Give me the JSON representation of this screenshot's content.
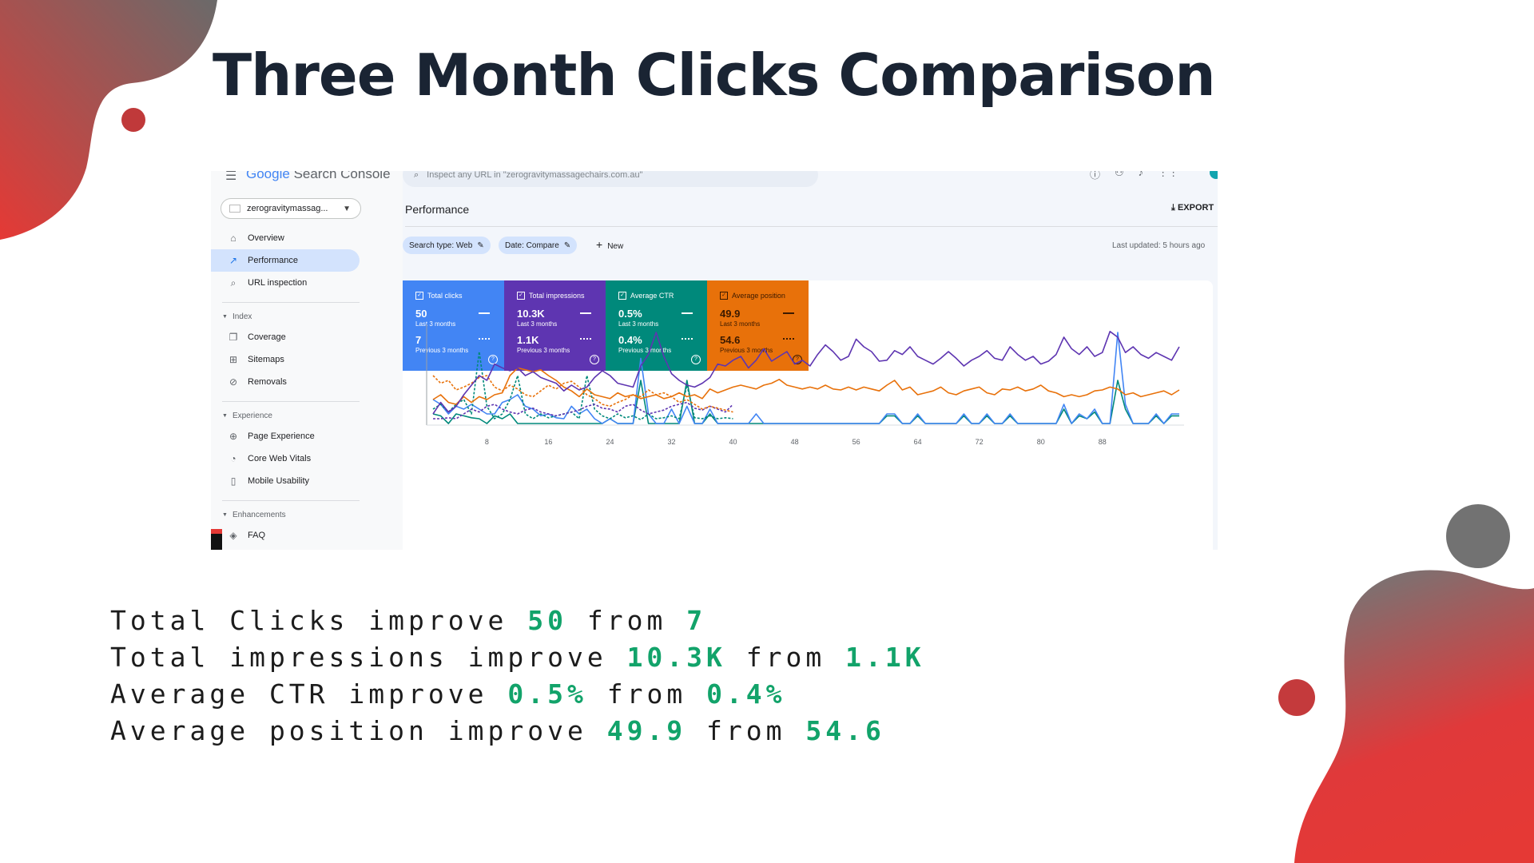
{
  "slide": {
    "title": "Three Month Clicks Comparison",
    "colors": {
      "accent_red": "#e53935",
      "accent_grey": "#6b6b6b",
      "highlight_green": "#12a36a"
    }
  },
  "gsc": {
    "brand": {
      "google": "Google",
      "product": "Search Console"
    },
    "property": "zerogravitymassag...",
    "search_placeholder": "Inspect any URL in \"zerogravitymassagechairs.com.au\"",
    "nav": [
      {
        "label": "Overview",
        "icon": "home-icon"
      },
      {
        "label": "Performance",
        "icon": "trending-icon",
        "active": true
      },
      {
        "label": "URL inspection",
        "icon": "search-icon"
      }
    ],
    "sections": {
      "index": {
        "label": "Index",
        "items": [
          {
            "label": "Coverage",
            "icon": "copy-icon"
          },
          {
            "label": "Sitemaps",
            "icon": "sitemap-icon"
          },
          {
            "label": "Removals",
            "icon": "eye-off-icon"
          }
        ]
      },
      "experience": {
        "label": "Experience",
        "items": [
          {
            "label": "Page Experience",
            "icon": "plus-circle-icon"
          },
          {
            "label": "Core Web Vitals",
            "icon": "gauge-icon"
          },
          {
            "label": "Mobile Usability",
            "icon": "phone-icon"
          }
        ]
      },
      "enhancements": {
        "label": "Enhancements",
        "items": [
          {
            "label": "FAQ",
            "icon": "layers-icon"
          }
        ]
      }
    },
    "page_title": "Performance",
    "export_label": "EXPORT",
    "filters": {
      "search_type": "Search type: Web",
      "date": "Date: Compare",
      "new_label": "New"
    },
    "last_updated": "Last updated: 5 hours ago",
    "metrics": [
      {
        "name": "Total clicks",
        "current": "50",
        "current_label": "Last 3 months",
        "previous": "7",
        "previous_label": "Previous 3 months",
        "color": "#4285f4"
      },
      {
        "name": "Total impressions",
        "current": "10.3K",
        "current_label": "Last 3 months",
        "previous": "1.1K",
        "previous_label": "Previous 3 months",
        "color": "#5e35b1"
      },
      {
        "name": "Average CTR",
        "current": "0.5%",
        "current_label": "Last 3 months",
        "previous": "0.4%",
        "previous_label": "Previous 3 months",
        "color": "#00897b"
      },
      {
        "name": "Average position",
        "current": "49.9",
        "current_label": "Last 3 months",
        "previous": "54.6",
        "previous_label": "Previous 3 months",
        "color": "#e8710a"
      }
    ]
  },
  "chart_data": {
    "type": "line",
    "x_ticks": [
      "8",
      "16",
      "24",
      "32",
      "40",
      "48",
      "56",
      "64",
      "72",
      "80",
      "88"
    ],
    "series": [
      {
        "color": "#5e35b1",
        "style": "solid",
        "values": [
          0.1,
          0.22,
          0.12,
          0.18,
          0.3,
          0.4,
          0.5,
          0.45,
          0.62,
          0.58,
          0.55,
          0.58,
          0.5,
          0.54,
          0.48,
          0.45,
          0.42,
          0.34,
          0.4,
          0.35,
          0.38,
          0.48,
          0.55,
          0.5,
          0.42,
          0.4,
          0.38,
          0.6,
          0.72,
          0.95,
          0.7,
          0.52,
          0.45,
          0.4,
          0.38,
          0.42,
          0.48,
          0.62,
          0.6,
          0.66,
          0.7,
          0.58,
          0.66,
          0.78,
          0.65,
          0.7,
          0.75,
          0.62,
          0.66,
          0.6,
          0.72,
          0.82,
          0.75,
          0.66,
          0.7,
          0.88,
          0.8,
          0.75,
          0.65,
          0.66,
          0.76,
          0.72,
          0.8,
          0.7,
          0.66,
          0.62,
          0.68,
          0.75,
          0.68,
          0.6,
          0.66,
          0.7,
          0.76,
          0.68,
          0.66,
          0.8,
          0.72,
          0.66,
          0.7,
          0.62,
          0.65,
          0.72,
          0.9,
          0.78,
          0.72,
          0.8,
          0.7,
          0.74,
          0.96,
          0.9,
          0.74,
          0.8,
          0.72,
          0.68,
          0.74,
          0.7,
          0.66,
          0.8
        ]
      },
      {
        "color": "#e8710a",
        "style": "solid",
        "values": [
          0.25,
          0.3,
          0.22,
          0.2,
          0.28,
          0.22,
          0.28,
          0.25,
          0.3,
          0.32,
          0.5,
          0.58,
          0.56,
          0.54,
          0.56,
          0.5,
          0.45,
          0.38,
          0.34,
          0.28,
          0.36,
          0.3,
          0.28,
          0.26,
          0.32,
          0.28,
          0.3,
          0.26,
          0.28,
          0.3,
          0.26,
          0.28,
          0.32,
          0.28,
          0.3,
          0.26,
          0.36,
          0.32,
          0.35,
          0.38,
          0.4,
          0.38,
          0.36,
          0.4,
          0.42,
          0.46,
          0.4,
          0.38,
          0.36,
          0.38,
          0.36,
          0.4,
          0.36,
          0.35,
          0.38,
          0.35,
          0.38,
          0.36,
          0.34,
          0.4,
          0.45,
          0.35,
          0.38,
          0.3,
          0.32,
          0.34,
          0.38,
          0.32,
          0.3,
          0.34,
          0.36,
          0.38,
          0.32,
          0.3,
          0.36,
          0.35,
          0.38,
          0.34,
          0.36,
          0.4,
          0.34,
          0.32,
          0.28,
          0.3,
          0.28,
          0.3,
          0.34,
          0.35,
          0.38,
          0.36,
          0.3,
          0.32,
          0.28,
          0.3,
          0.32,
          0.34,
          0.3,
          0.35
        ]
      },
      {
        "color": "#4285f4",
        "style": "solid",
        "values": [
          0.25,
          0.2,
          0.1,
          0.18,
          0.15,
          0.2,
          0.15,
          0.1,
          0.1,
          0.22,
          0.25,
          0.3,
          0.18,
          0.15,
          0.08,
          0.1,
          0.06,
          0.05,
          0.18,
          0.1,
          0.15,
          0.05,
          0.0,
          0.05,
          0.0,
          0.0,
          0.0,
          0.68,
          0.1,
          0.0,
          0.0,
          0.15,
          0.0,
          0.18,
          0.0,
          0.0,
          0.15,
          0.0,
          0.0,
          0.0,
          0.0,
          0.0,
          0.1,
          0.0,
          0.0,
          0.0,
          0.0,
          0.0,
          0.0,
          0.0,
          0.0,
          0.0,
          0.0,
          0.0,
          0.0,
          0.0,
          0.0,
          0.0,
          0.0,
          0.1,
          0.1,
          0.0,
          0.0,
          0.1,
          0.0,
          0.0,
          0.0,
          0.0,
          0.0,
          0.1,
          0.0,
          0.0,
          0.1,
          0.0,
          0.0,
          0.1,
          0.0,
          0.0,
          0.0,
          0.0,
          0.0,
          0.0,
          0.2,
          0.0,
          0.1,
          0.05,
          0.15,
          0.0,
          0.0,
          0.95,
          0.2,
          0.0,
          0.0,
          0.0,
          0.1,
          0.0,
          0.1,
          0.1
        ]
      },
      {
        "color": "#00897b",
        "style": "solid",
        "values": [
          0.1,
          0.08,
          0.0,
          0.1,
          0.08,
          0.06,
          0.05,
          0.0,
          0.08,
          0.05,
          0.1,
          0.0,
          0.0,
          0.0,
          0.0,
          0.0,
          0.0,
          0.0,
          0.0,
          0.0,
          0.0,
          0.0,
          0.0,
          0.05,
          0.0,
          0.0,
          0.0,
          0.45,
          0.0,
          0.0,
          0.0,
          0.0,
          0.0,
          0.45,
          0.0,
          0.0,
          0.1,
          0.0,
          0.0,
          0.0,
          0.0,
          0.0,
          0.0,
          0.0,
          0.0,
          0.0,
          0.0,
          0.0,
          0.0,
          0.0,
          0.0,
          0.0,
          0.0,
          0.0,
          0.0,
          0.0,
          0.0,
          0.0,
          0.0,
          0.08,
          0.08,
          0.0,
          0.0,
          0.08,
          0.0,
          0.0,
          0.0,
          0.0,
          0.0,
          0.08,
          0.0,
          0.0,
          0.08,
          0.0,
          0.0,
          0.08,
          0.0,
          0.0,
          0.0,
          0.0,
          0.0,
          0.0,
          0.15,
          0.0,
          0.08,
          0.05,
          0.12,
          0.0,
          0.0,
          0.45,
          0.15,
          0.0,
          0.0,
          0.0,
          0.08,
          0.0,
          0.08,
          0.08
        ]
      },
      {
        "color": "#e8710a",
        "style": "dashed",
        "values": [
          0.5,
          0.42,
          0.45,
          0.35,
          0.38,
          0.42,
          0.48,
          0.5,
          0.38,
          0.34,
          0.4,
          0.36,
          0.3,
          0.28,
          0.34,
          0.4,
          0.36,
          0.42,
          0.44,
          0.38,
          0.3,
          0.26,
          0.2,
          0.18,
          0.22,
          0.25,
          0.3,
          0.28,
          0.35,
          0.3,
          0.32,
          0.28,
          0.22,
          0.25,
          0.2,
          0.15,
          0.18,
          0.16,
          0.14,
          0.12
        ]
      },
      {
        "color": "#5e35b1",
        "style": "dashed",
        "values": [
          0.05,
          0.05,
          0.06,
          0.05,
          0.1,
          0.15,
          0.12,
          0.18,
          0.2,
          0.15,
          0.12,
          0.1,
          0.14,
          0.16,
          0.12,
          0.1,
          0.08,
          0.1,
          0.12,
          0.14,
          0.18,
          0.2,
          0.16,
          0.15,
          0.12,
          0.18,
          0.2,
          0.14,
          0.1,
          0.12,
          0.14,
          0.18,
          0.2,
          0.22,
          0.16,
          0.14,
          0.18,
          0.15,
          0.12,
          0.2
        ]
      },
      {
        "color": "#00897b",
        "style": "dashed",
        "values": [
          0.15,
          0.2,
          0.12,
          0.2,
          0.25,
          0.1,
          0.75,
          0.18,
          0.05,
          0.1,
          0.25,
          0.5,
          0.1,
          0.05,
          0.1,
          0.06,
          0.08,
          0.1,
          0.12,
          0.05,
          0.5,
          0.15,
          0.08,
          0.05,
          0.1,
          0.06,
          0.08,
          0.04,
          0.1,
          0.05,
          0.06,
          0.08,
          0.05,
          0.4,
          0.06,
          0.05,
          0.08,
          0.05,
          0.06,
          0.05
        ]
      }
    ]
  },
  "summary": [
    {
      "label": "Total Clicks improve ",
      "now": "50",
      "from_word": " from ",
      "before": "7"
    },
    {
      "label": "Total impressions improve ",
      "now": "10.3K",
      "from_word": " from ",
      "before": "1.1K"
    },
    {
      "label": "Average CTR improve ",
      "now": "0.5%",
      "from_word": " from ",
      "before": "0.4%"
    },
    {
      "label": "Average position improve ",
      "now": "49.9",
      "from_word": " from ",
      "before": "54.6"
    }
  ]
}
